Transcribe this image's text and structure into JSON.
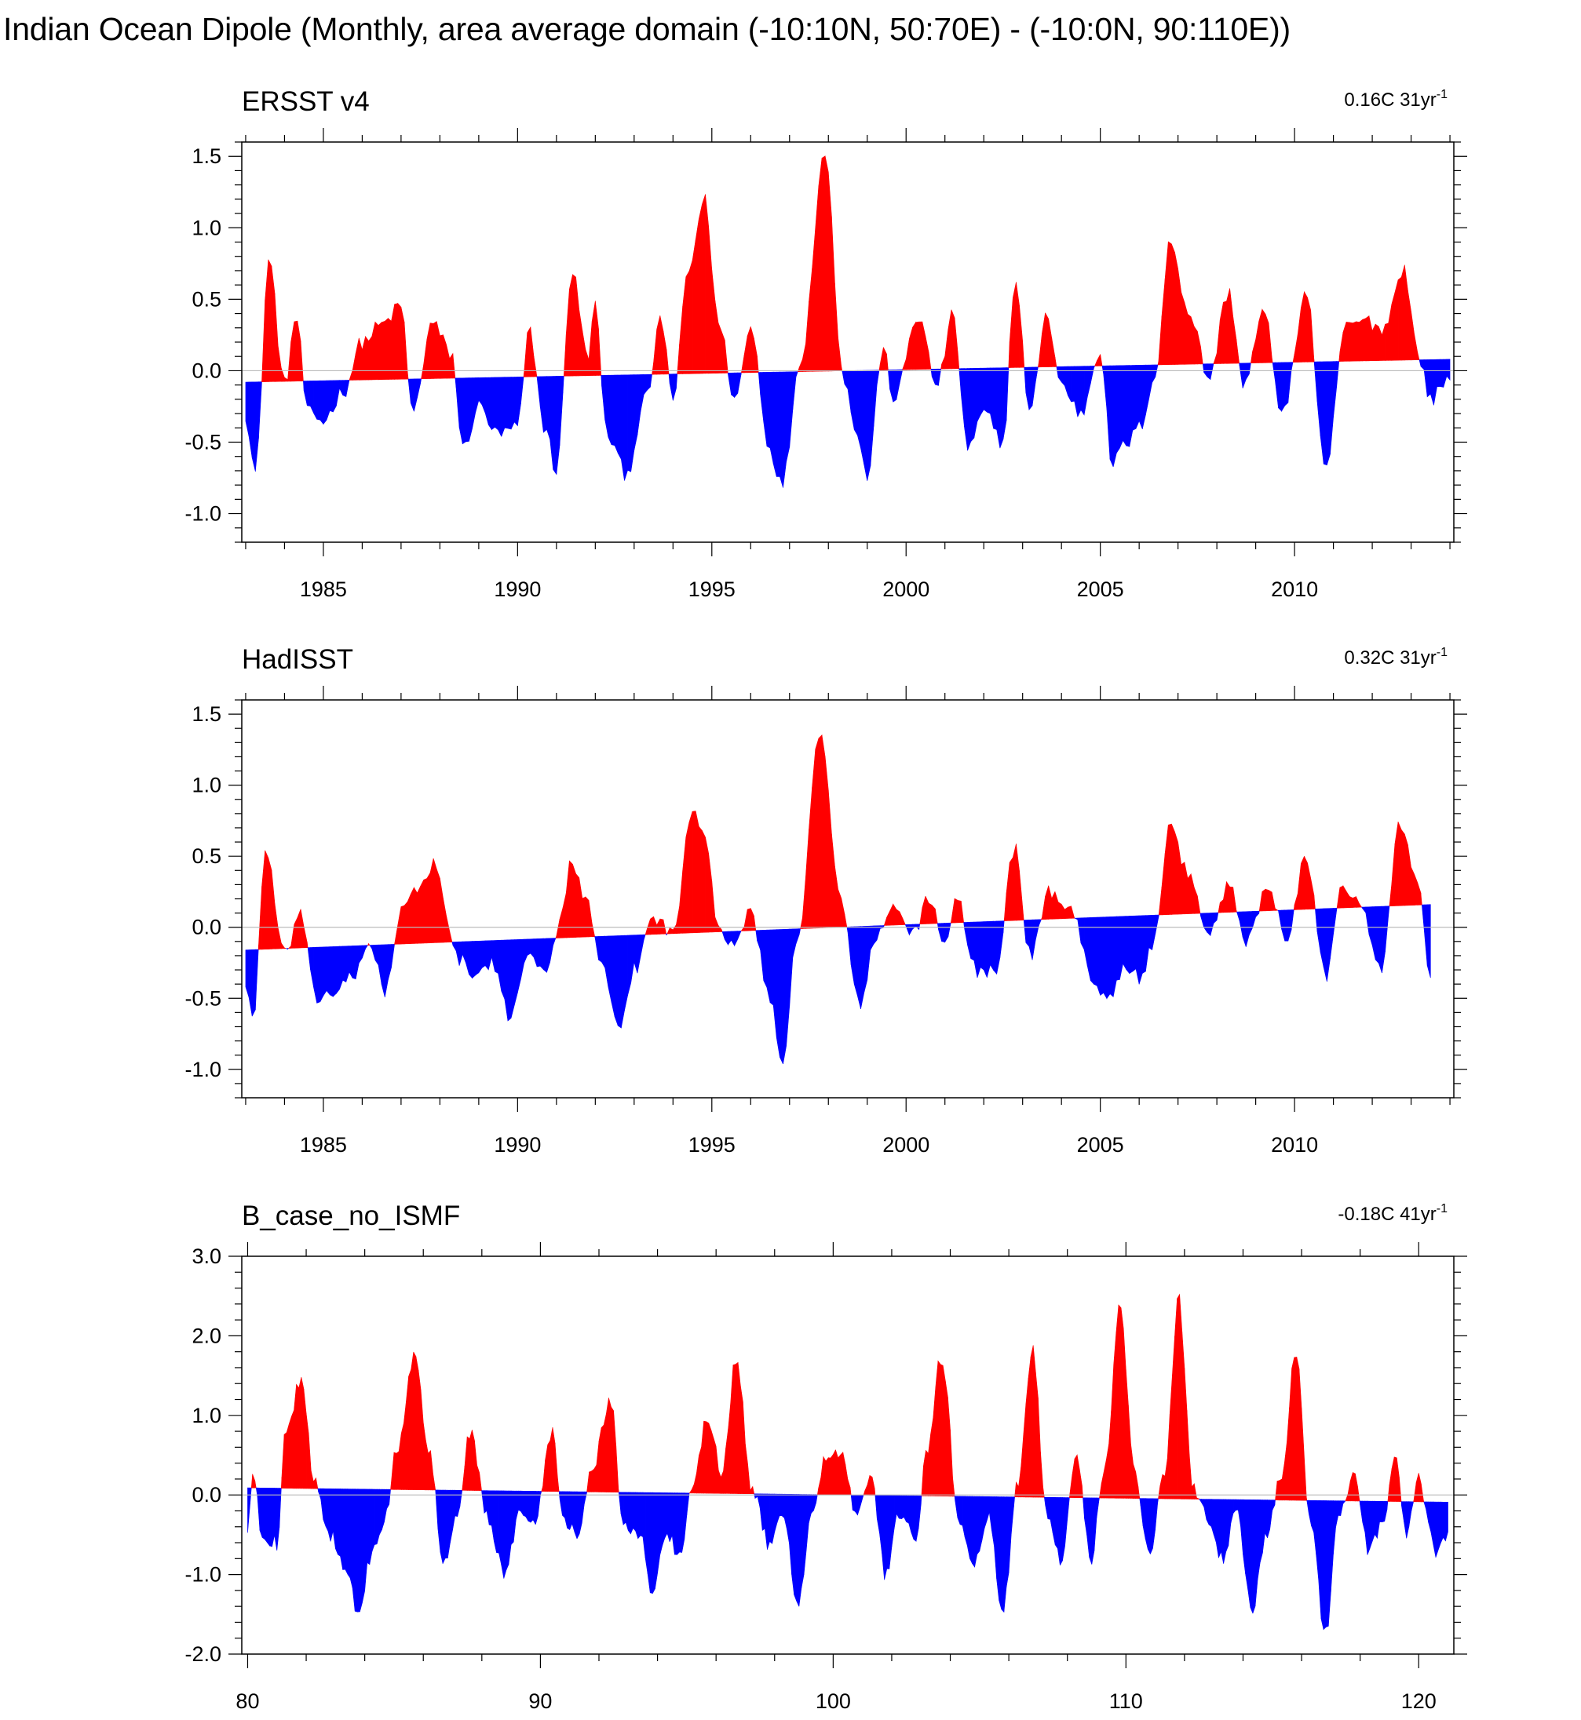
{
  "title": "Indian Ocean Dipole (Monthly, area average domain (-10:10N, 50:70E) - (-10:0N, 90:110E))",
  "colors": {
    "positive": "#ff0000",
    "negative": "#0000ff",
    "zero_line": "#bbbbbb",
    "axis": "#000000"
  },
  "chart_data": [
    {
      "type": "area",
      "title": "ERSST v4",
      "trend_label": {
        "main": "0.16C 31yr",
        "superscript": "-1"
      },
      "xlim": [
        1982.9,
        2014.1
      ],
      "ylim": [
        -1.2,
        1.6
      ],
      "x_ticks": [
        1985,
        1990,
        1995,
        2000,
        2005,
        2010
      ],
      "y_ticks": [
        1.5,
        1.0,
        0.5,
        0.0,
        -0.5,
        -1.0
      ],
      "y_tick_labels": [
        "1.5",
        "1.0",
        "0.5",
        "0.0",
        "-0.5",
        "-1.0"
      ],
      "data_range": [
        1983.0,
        2014.0
      ],
      "trend": [
        -0.08,
        0.08
      ],
      "series_keypoints": [
        [
          1983.0,
          -0.3
        ],
        [
          1983.25,
          -0.72
        ],
        [
          1983.6,
          0.78
        ],
        [
          1984.0,
          -0.1
        ],
        [
          1984.3,
          0.38
        ],
        [
          1984.6,
          -0.3
        ],
        [
          1985.0,
          -0.35
        ],
        [
          1985.5,
          -0.15
        ],
        [
          1986.0,
          0.2
        ],
        [
          1986.5,
          0.32
        ],
        [
          1987.0,
          0.45
        ],
        [
          1987.3,
          -0.3
        ],
        [
          1987.8,
          0.33
        ],
        [
          1988.3,
          0.12
        ],
        [
          1988.6,
          -0.55
        ],
        [
          1989.0,
          -0.25
        ],
        [
          1989.5,
          -0.45
        ],
        [
          1990.0,
          -0.4
        ],
        [
          1990.3,
          0.28
        ],
        [
          1990.7,
          -0.4
        ],
        [
          1991.0,
          -0.7
        ],
        [
          1991.4,
          0.7
        ],
        [
          1991.8,
          0.1
        ],
        [
          1992.0,
          0.45
        ],
        [
          1992.3,
          -0.45
        ],
        [
          1992.8,
          -0.72
        ],
        [
          1993.3,
          -0.2
        ],
        [
          1993.7,
          0.35
        ],
        [
          1994.0,
          -0.2
        ],
        [
          1994.4,
          0.7
        ],
        [
          1994.8,
          1.2
        ],
        [
          1995.2,
          0.3
        ],
        [
          1995.6,
          -0.2
        ],
        [
          1996.0,
          0.3
        ],
        [
          1996.5,
          -0.55
        ],
        [
          1996.8,
          -0.8
        ],
        [
          1997.3,
          0.1
        ],
        [
          1997.9,
          1.52
        ],
        [
          1998.4,
          -0.05
        ],
        [
          1998.8,
          -0.5
        ],
        [
          1999.0,
          -0.75
        ],
        [
          1999.4,
          0.15
        ],
        [
          1999.7,
          -0.2
        ],
        [
          2000.3,
          0.38
        ],
        [
          2000.8,
          -0.1
        ],
        [
          2001.2,
          0.38
        ],
        [
          2001.6,
          -0.55
        ],
        [
          2002.0,
          -0.3
        ],
        [
          2002.5,
          -0.5
        ],
        [
          2002.8,
          0.63
        ],
        [
          2003.2,
          -0.3
        ],
        [
          2003.6,
          0.4
        ],
        [
          2004.0,
          -0.1
        ],
        [
          2004.5,
          -0.3
        ],
        [
          2005.0,
          0.15
        ],
        [
          2005.3,
          -0.65
        ],
        [
          2005.7,
          -0.5
        ],
        [
          2006.0,
          -0.4
        ],
        [
          2006.4,
          -0.05
        ],
        [
          2006.8,
          0.9
        ],
        [
          2007.3,
          0.4
        ],
        [
          2007.8,
          -0.05
        ],
        [
          2008.3,
          0.55
        ],
        [
          2008.7,
          -0.1
        ],
        [
          2009.2,
          0.4
        ],
        [
          2009.7,
          -0.3
        ],
        [
          2010.3,
          0.55
        ],
        [
          2010.8,
          -0.72
        ],
        [
          2011.3,
          0.3
        ],
        [
          2011.8,
          0.35
        ],
        [
          2012.3,
          0.3
        ],
        [
          2012.8,
          0.72
        ],
        [
          2013.2,
          0.1
        ],
        [
          2013.5,
          -0.2
        ],
        [
          2014.0,
          -0.05
        ]
      ]
    },
    {
      "type": "area",
      "title": "HadISST",
      "trend_label": {
        "main": "0.32C 31yr",
        "superscript": "-1"
      },
      "xlim": [
        1982.9,
        2014.1
      ],
      "ylim": [
        -1.2,
        1.6
      ],
      "x_ticks": [
        1985,
        1990,
        1995,
        2000,
        2005,
        2010
      ],
      "y_ticks": [
        1.5,
        1.0,
        0.5,
        0.0,
        -0.5,
        -1.0
      ],
      "y_tick_labels": [
        "1.5",
        "1.0",
        "0.5",
        "0.0",
        "-0.5",
        "-1.0"
      ],
      "data_range": [
        1983.0,
        2013.5
      ],
      "trend": [
        -0.16,
        0.16
      ],
      "series_keypoints": [
        [
          1983.0,
          -0.4
        ],
        [
          1983.2,
          -0.65
        ],
        [
          1983.5,
          0.55
        ],
        [
          1984.0,
          -0.2
        ],
        [
          1984.4,
          0.1
        ],
        [
          1984.8,
          -0.5
        ],
        [
          1985.3,
          -0.45
        ],
        [
          1985.8,
          -0.35
        ],
        [
          1986.2,
          -0.1
        ],
        [
          1986.6,
          -0.45
        ],
        [
          1987.0,
          0.1
        ],
        [
          1987.5,
          0.3
        ],
        [
          1987.9,
          0.45
        ],
        [
          1988.4,
          -0.2
        ],
        [
          1988.9,
          -0.35
        ],
        [
          1989.3,
          -0.25
        ],
        [
          1989.8,
          -0.62
        ],
        [
          1990.3,
          -0.15
        ],
        [
          1990.7,
          -0.35
        ],
        [
          1991.1,
          0.05
        ],
        [
          1991.4,
          0.48
        ],
        [
          1991.8,
          0.15
        ],
        [
          1992.2,
          -0.3
        ],
        [
          1992.6,
          -0.75
        ],
        [
          1993.0,
          -0.3
        ],
        [
          1993.5,
          0.08
        ],
        [
          1994.0,
          -0.05
        ],
        [
          1994.5,
          0.85
        ],
        [
          1994.8,
          0.7
        ],
        [
          1995.2,
          -0.05
        ],
        [
          1995.6,
          -0.1
        ],
        [
          1996.0,
          0.1
        ],
        [
          1996.5,
          -0.5
        ],
        [
          1996.8,
          -0.95
        ],
        [
          1997.2,
          -0.1
        ],
        [
          1997.8,
          1.4
        ],
        [
          1998.3,
          0.2
        ],
        [
          1998.8,
          -0.55
        ],
        [
          1999.2,
          -0.1
        ],
        [
          1999.7,
          0.15
        ],
        [
          2000.2,
          -0.05
        ],
        [
          2000.6,
          0.22
        ],
        [
          2001.0,
          -0.15
        ],
        [
          2001.3,
          0.2
        ],
        [
          2001.8,
          -0.3
        ],
        [
          2002.3,
          -0.3
        ],
        [
          2002.8,
          0.55
        ],
        [
          2003.2,
          -0.2
        ],
        [
          2003.7,
          0.25
        ],
        [
          2004.2,
          0.15
        ],
        [
          2004.8,
          -0.35
        ],
        [
          2005.2,
          -0.5
        ],
        [
          2005.6,
          -0.3
        ],
        [
          2006.0,
          -0.35
        ],
        [
          2006.4,
          -0.1
        ],
        [
          2006.8,
          0.7
        ],
        [
          2007.3,
          0.35
        ],
        [
          2007.8,
          -0.05
        ],
        [
          2008.3,
          0.3
        ],
        [
          2008.8,
          -0.1
        ],
        [
          2009.3,
          0.3
        ],
        [
          2009.8,
          -0.05
        ],
        [
          2010.3,
          0.5
        ],
        [
          2010.8,
          -0.35
        ],
        [
          2011.2,
          0.3
        ],
        [
          2011.7,
          0.2
        ],
        [
          2012.2,
          -0.3
        ],
        [
          2012.7,
          0.7
        ],
        [
          2013.2,
          0.3
        ],
        [
          2013.5,
          -0.35
        ]
      ]
    },
    {
      "type": "area",
      "title": "B_case_no_ISMF",
      "trend_label": {
        "main": "-0.18C 41yr",
        "superscript": "-1"
      },
      "xlim": [
        79.8,
        121.2
      ],
      "ylim": [
        -2.0,
        3.0
      ],
      "x_ticks": [
        80,
        90,
        100,
        110,
        120
      ],
      "y_ticks": [
        3.0,
        2.0,
        1.0,
        0.0,
        -1.0,
        -2.0
      ],
      "y_tick_labels": [
        "3.0",
        "2.0",
        "1.0",
        "0.0",
        "-1.0",
        "-2.0"
      ],
      "data_range": [
        80.0,
        121.0
      ],
      "trend": [
        0.09,
        -0.09
      ],
      "series_keypoints": [
        [
          80.0,
          -0.5
        ],
        [
          80.2,
          0.3
        ],
        [
          80.5,
          -0.5
        ],
        [
          81.0,
          -0.6
        ],
        [
          81.3,
          0.8
        ],
        [
          81.8,
          1.4
        ],
        [
          82.3,
          0.2
        ],
        [
          82.8,
          -0.5
        ],
        [
          83.4,
          -0.9
        ],
        [
          83.8,
          -1.55
        ],
        [
          84.2,
          -0.8
        ],
        [
          84.7,
          -0.3
        ],
        [
          85.1,
          0.6
        ],
        [
          85.7,
          1.75
        ],
        [
          86.2,
          0.5
        ],
        [
          86.7,
          -0.8
        ],
        [
          87.2,
          -0.2
        ],
        [
          87.6,
          0.8
        ],
        [
          88.2,
          -0.3
        ],
        [
          88.8,
          -1.0
        ],
        [
          89.3,
          -0.2
        ],
        [
          89.8,
          -0.3
        ],
        [
          90.4,
          0.8
        ],
        [
          90.8,
          -0.3
        ],
        [
          91.3,
          -0.5
        ],
        [
          91.8,
          0.4
        ],
        [
          92.4,
          1.2
        ],
        [
          92.8,
          -0.3
        ],
        [
          93.4,
          -0.5
        ],
        [
          93.8,
          -1.2
        ],
        [
          94.3,
          -0.5
        ],
        [
          94.8,
          -0.8
        ],
        [
          95.2,
          0.1
        ],
        [
          95.7,
          1.0
        ],
        [
          96.2,
          0.3
        ],
        [
          96.7,
          1.75
        ],
        [
          97.2,
          0.1
        ],
        [
          97.8,
          -0.6
        ],
        [
          98.3,
          -0.3
        ],
        [
          98.8,
          -1.35
        ],
        [
          99.3,
          -0.2
        ],
        [
          99.8,
          0.5
        ],
        [
          100.3,
          0.5
        ],
        [
          100.8,
          -0.3
        ],
        [
          101.3,
          0.2
        ],
        [
          101.8,
          -1.0
        ],
        [
          102.3,
          -0.2
        ],
        [
          102.8,
          -0.6
        ],
        [
          103.2,
          0.5
        ],
        [
          103.7,
          1.75
        ],
        [
          104.3,
          -0.3
        ],
        [
          104.8,
          -0.9
        ],
        [
          105.3,
          -0.3
        ],
        [
          105.8,
          -1.45
        ],
        [
          106.3,
          0.1
        ],
        [
          106.8,
          1.85
        ],
        [
          107.3,
          -0.2
        ],
        [
          107.8,
          -0.8
        ],
        [
          108.3,
          0.5
        ],
        [
          108.8,
          -0.8
        ],
        [
          109.3,
          0.4
        ],
        [
          109.8,
          2.35
        ],
        [
          110.3,
          0.3
        ],
        [
          110.8,
          -0.7
        ],
        [
          111.3,
          0.2
        ],
        [
          111.8,
          2.45
        ],
        [
          112.3,
          0.1
        ],
        [
          112.8,
          -0.3
        ],
        [
          113.3,
          -0.8
        ],
        [
          113.8,
          -0.2
        ],
        [
          114.3,
          -1.5
        ],
        [
          114.8,
          -0.5
        ],
        [
          115.3,
          0.2
        ],
        [
          115.8,
          1.75
        ],
        [
          116.3,
          -0.3
        ],
        [
          116.8,
          -1.75
        ],
        [
          117.3,
          -0.2
        ],
        [
          117.8,
          0.3
        ],
        [
          118.3,
          -0.7
        ],
        [
          118.8,
          -0.3
        ],
        [
          119.2,
          0.45
        ],
        [
          119.6,
          -0.5
        ],
        [
          120.0,
          0.2
        ],
        [
          120.4,
          -0.4
        ],
        [
          120.6,
          -0.7
        ],
        [
          121.0,
          -0.55
        ]
      ]
    }
  ]
}
